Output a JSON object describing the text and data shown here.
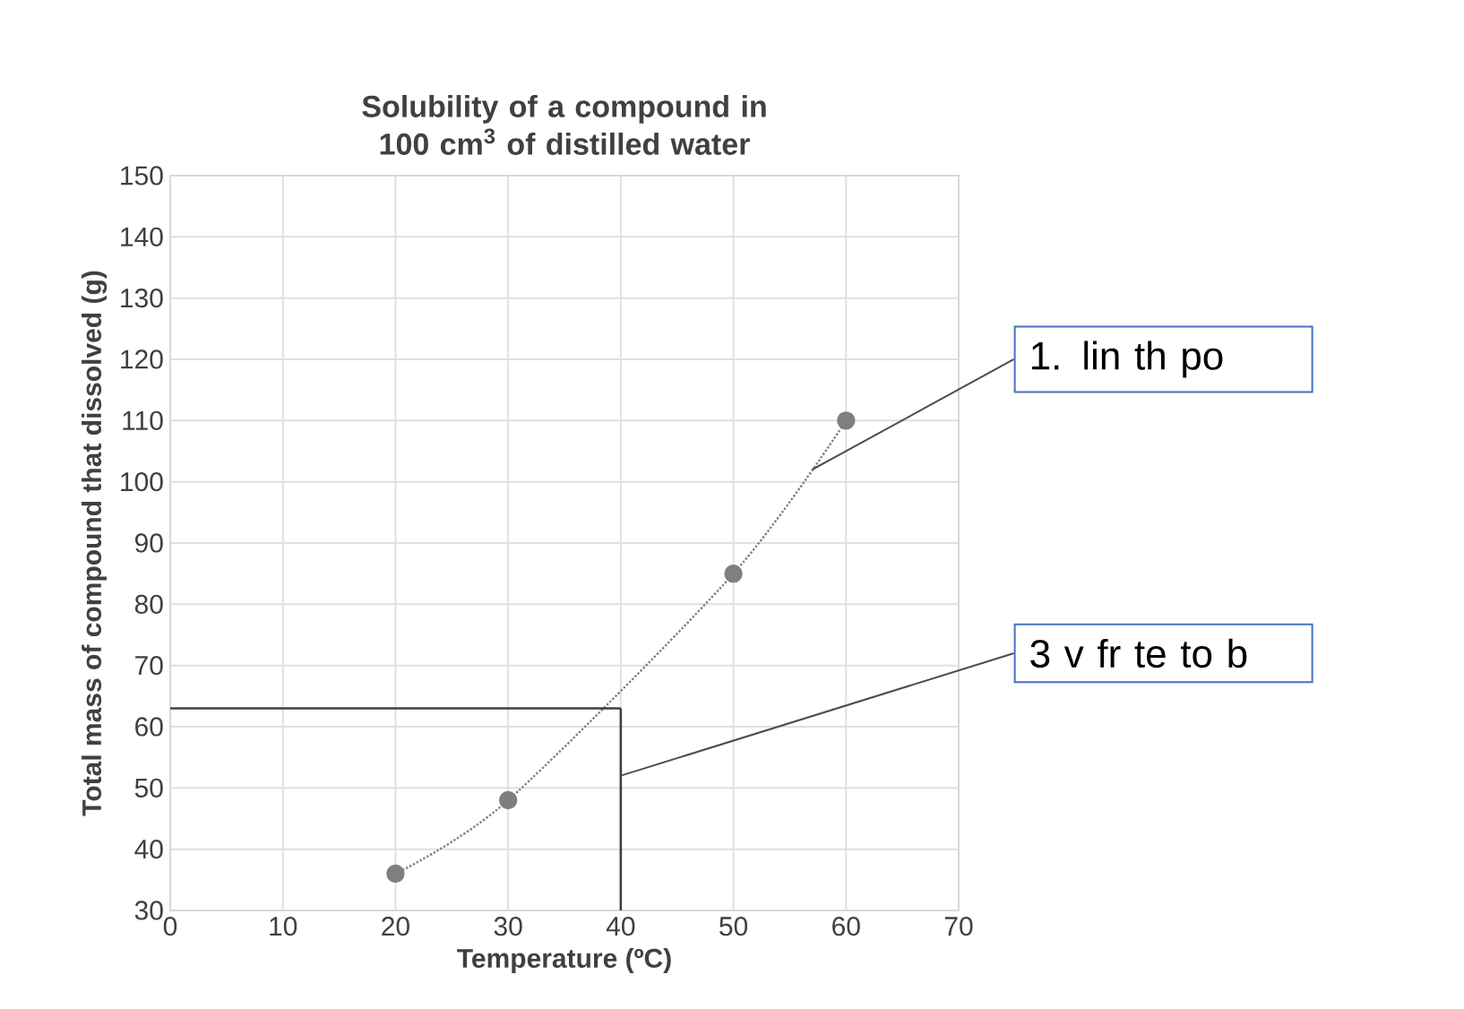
{
  "chart_data": {
    "type": "line",
    "title": "Solubility of a compound in 100 cm$^{3}$ of distilled water",
    "xlabel": "Temperature (ºC)",
    "ylabel": "Total mass of compound that dissolved (g)",
    "x": [
      20,
      30,
      50,
      60
    ],
    "series": [
      {
        "color": "#7f7f7f",
        "values": [
          36,
          48,
          85,
          110
        ]
      }
    ],
    "marker": "circle",
    "line_style": "dotted",
    "grid": true,
    "xlim": [
      0,
      70
    ],
    "xticks": [
      0,
      10,
      20,
      30,
      40,
      50,
      60,
      70
    ],
    "ylim": [
      30,
      150
    ],
    "yticks": [
      30,
      40,
      50,
      60,
      70,
      80,
      90,
      100,
      110,
      120,
      130,
      140,
      150
    ],
    "ref_lines": [
      {
        "axis": "x",
        "value": 40,
        "color": "#404040"
      },
      {
        "axis": "y",
        "value": 63,
        "color": "#404040"
      }
    ],
    "annotations": [
      {
        "text": "1. lin th po",
        "x": 57,
        "y": 102
      },
      {
        "text": "3 v fr te to b",
        "x": 40,
        "y": 52
      }
    ]
  }
}
